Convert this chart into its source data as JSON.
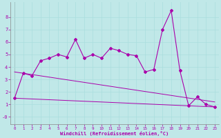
{
  "xlabel": "Windchill (Refroidissement éolien,°C)",
  "bg_color": "#c0e8e8",
  "line_color": "#aa00aa",
  "grid_color": "#aadddd",
  "x_hours": [
    0,
    1,
    2,
    3,
    4,
    5,
    6,
    7,
    8,
    9,
    10,
    11,
    12,
    13,
    14,
    15,
    16,
    17,
    18,
    19,
    20,
    21,
    22,
    23
  ],
  "y_values": [
    1.5,
    3.5,
    3.3,
    4.5,
    4.7,
    5.0,
    4.8,
    6.2,
    4.7,
    5.0,
    4.7,
    5.5,
    5.3,
    5.0,
    4.9,
    3.6,
    3.8,
    7.0,
    8.5,
    3.7,
    0.9,
    1.6,
    1.0,
    0.8
  ],
  "y_line1_start": 3.6,
  "y_line1_end": 1.2,
  "y_line2_start": 1.5,
  "y_line2_end": 0.8,
  "ylim": [
    -0.6,
    9.2
  ],
  "yticks": [
    0,
    1,
    2,
    3,
    4,
    5,
    6,
    7,
    8
  ],
  "xlim": [
    -0.5,
    23.5
  ],
  "xticks": [
    0,
    1,
    2,
    3,
    4,
    5,
    6,
    7,
    8,
    9,
    10,
    11,
    12,
    13,
    14,
    15,
    16,
    17,
    18,
    19,
    20,
    21,
    22,
    23
  ]
}
